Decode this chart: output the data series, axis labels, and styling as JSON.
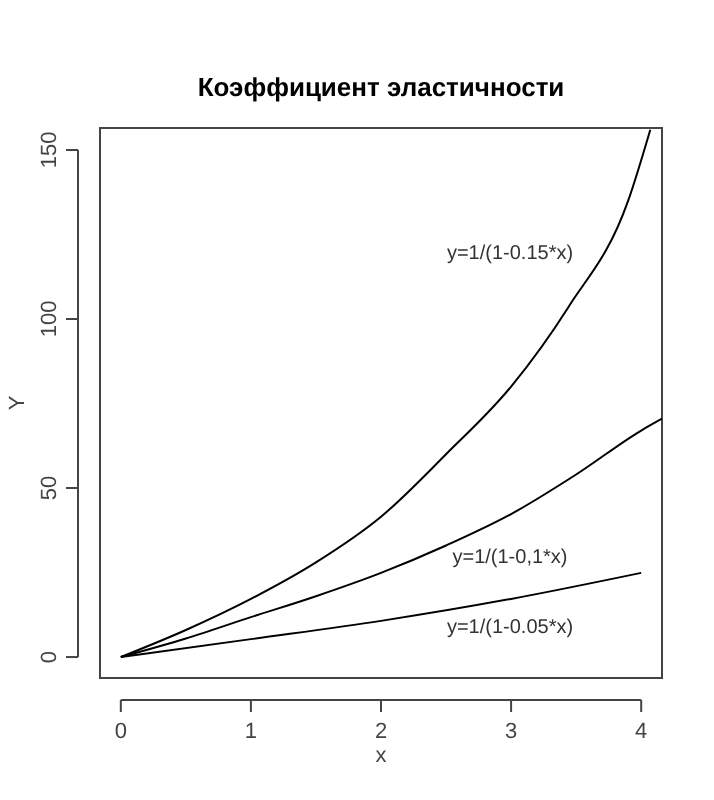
{
  "chart_data": {
    "type": "line",
    "title": "Коэффициент эластичности",
    "xlabel": "x",
    "ylabel": "Y",
    "xlim": [
      -0.16,
      4.16
    ],
    "ylim": [
      -6.2,
      156.5
    ],
    "xticks": [
      0,
      1,
      2,
      3,
      4
    ],
    "yticks": [
      0,
      50,
      100,
      150
    ],
    "grid": false,
    "marker": "none",
    "line_style": "solid",
    "series": [
      {
        "color": "#000000",
        "x": [
          0,
          0.5,
          1,
          1.5,
          2,
          2.5,
          3,
          3.44,
          3.9,
          4.07
        ],
        "values": [
          0,
          8,
          17.2,
          28,
          41.5,
          60,
          80,
          103.5,
          135,
          156
        ]
      },
      {
        "color": "#000000",
        "x": [
          0,
          0.5,
          1,
          1.5,
          2,
          2.5,
          3,
          3.5,
          4,
          4.16
        ],
        "values": [
          0,
          5.5,
          11.8,
          18,
          24.9,
          33,
          42.3,
          54,
          67,
          70.5
        ]
      },
      {
        "color": "#000000",
        "x": [
          0,
          1,
          2,
          3,
          4
        ],
        "values": [
          0,
          5.3,
          10.7,
          17.2,
          24.9
        ]
      }
    ],
    "annotations": [
      "y=1/(1-0.15*x)",
      "y=1/(1-0,1*x)",
      "y=1/(1-0.05*x)"
    ]
  }
}
